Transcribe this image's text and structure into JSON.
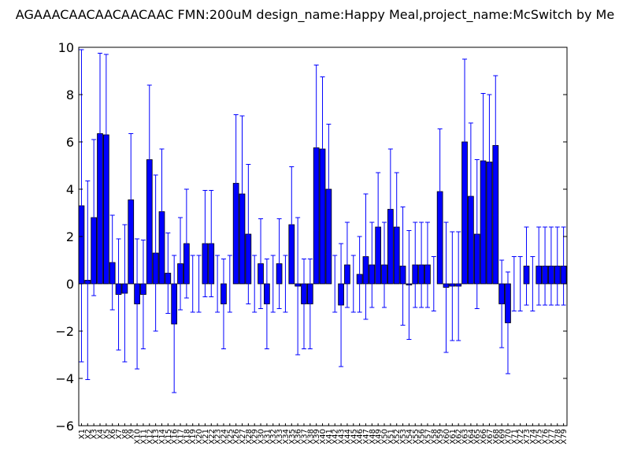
{
  "chart_data": {
    "type": "bar",
    "title": "AGAAACAACAACAACAAC  FMN:200uM  design_name:Happy Meal,project_name:McSwitch by Me",
    "xlabel": "",
    "ylabel": "",
    "ylim": [
      -6,
      10
    ],
    "yticks": [
      "−6",
      "−4",
      "−2",
      "0",
      "2",
      "4",
      "6",
      "8",
      "10"
    ],
    "ytick_values": [
      -6,
      -4,
      -2,
      0,
      2,
      4,
      6,
      8,
      10
    ],
    "grid": false,
    "bar_color": "#0000ff",
    "error_color": "#0000ff",
    "categories": [
      "X1",
      "X2",
      "X3",
      "X4",
      "X5",
      "X6",
      "X7",
      "X8",
      "X9",
      "X10",
      "X11",
      "X12",
      "X13",
      "X14",
      "X15",
      "X16",
      "X17",
      "X18",
      "X19",
      "X20",
      "X21",
      "X22",
      "X23",
      "X24",
      "X25",
      "X26",
      "X27",
      "X28",
      "X29",
      "X30",
      "X31",
      "X32",
      "X33",
      "X34",
      "X35",
      "X36",
      "X37",
      "X38",
      "X39",
      "X40",
      "X41",
      "X42",
      "X43",
      "X44",
      "X45",
      "X46",
      "X47",
      "X48",
      "X49",
      "X50",
      "X51",
      "X52",
      "X53",
      "X54",
      "X55",
      "X56",
      "X57",
      "X58",
      "X59",
      "X60",
      "X61",
      "X62",
      "X63",
      "X64",
      "X65",
      "X66",
      "X67",
      "X68",
      "X69",
      "X70",
      "X71",
      "X72",
      "X73",
      "X74",
      "X75",
      "X76",
      "X77",
      "X78",
      "X79"
    ],
    "values": [
      3.3,
      0.15,
      2.8,
      6.35,
      6.3,
      0.9,
      -0.45,
      -0.4,
      3.55,
      -0.85,
      -0.45,
      5.25,
      1.3,
      3.05,
      0.45,
      -1.7,
      0.85,
      1.7,
      0.0,
      0.0,
      1.7,
      1.7,
      0.0,
      -0.85,
      0.0,
      4.25,
      3.8,
      2.1,
      0.0,
      0.85,
      -0.85,
      0.0,
      0.85,
      0.0,
      2.5,
      -0.1,
      -0.85,
      -0.85,
      5.75,
      5.7,
      4.0,
      0.0,
      -0.9,
      0.8,
      0.0,
      0.4,
      1.15,
      0.8,
      2.4,
      0.8,
      3.15,
      2.4,
      0.75,
      -0.05,
      0.8,
      0.8,
      0.8,
      0.0,
      3.9,
      -0.15,
      -0.1,
      -0.1,
      6.0,
      3.7,
      2.1,
      5.2,
      5.15,
      5.85,
      -0.85,
      -1.65,
      0.0,
      0.0,
      0.75,
      0.0,
      0.75,
      0.75,
      0.75,
      0.75,
      0.75
    ],
    "errors": [
      6.6,
      4.2,
      3.3,
      3.4,
      3.4,
      2.0,
      2.35,
      2.9,
      2.8,
      2.75,
      2.3,
      3.15,
      3.3,
      2.65,
      1.7,
      2.9,
      1.95,
      2.3,
      1.2,
      1.2,
      2.25,
      2.25,
      1.2,
      1.9,
      1.2,
      2.9,
      3.3,
      2.95,
      1.2,
      1.9,
      1.9,
      1.2,
      1.9,
      1.2,
      2.45,
      2.9,
      1.9,
      1.9,
      3.5,
      3.05,
      2.75,
      1.2,
      2.6,
      1.8,
      1.2,
      1.6,
      2.65,
      1.8,
      2.3,
      1.8,
      2.55,
      2.3,
      2.5,
      2.3,
      1.8,
      1.8,
      1.8,
      1.15,
      2.65,
      2.75,
      2.3,
      2.3,
      3.5,
      3.1,
      3.15,
      2.85,
      2.85,
      2.95,
      1.85,
      2.15,
      1.15,
      1.15,
      1.65,
      1.15,
      1.65,
      1.65,
      1.65,
      1.65,
      1.65
    ]
  }
}
